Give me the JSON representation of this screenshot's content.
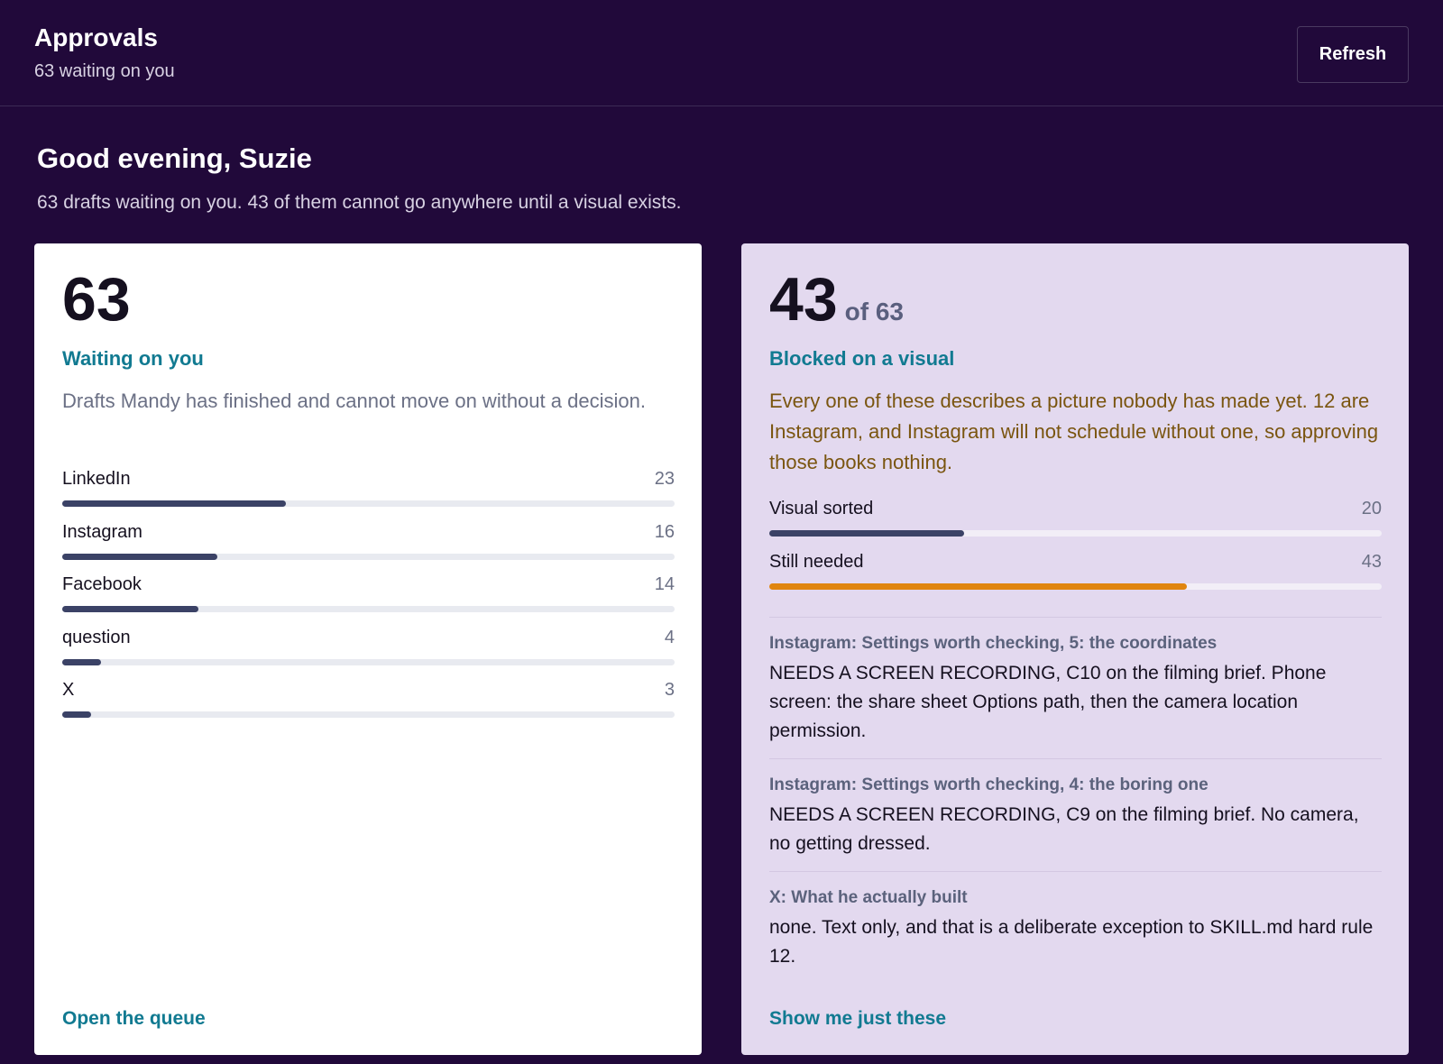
{
  "header": {
    "title": "Approvals",
    "subtitle": "63 waiting on you",
    "refresh_label": "Refresh"
  },
  "greeting": {
    "title": "Good evening, Suzie",
    "subtitle": "63 drafts waiting on you. 43 of them cannot go anywhere until a visual exists."
  },
  "waiting_card": {
    "count": "63",
    "label": "Waiting on you",
    "description": "Drafts Mandy has finished and cannot move on without a decision.",
    "bar_max": 63,
    "bar_color": "#3b4266",
    "platforms": [
      {
        "label": "LinkedIn",
        "value": 23
      },
      {
        "label": "Instagram",
        "value": 16
      },
      {
        "label": "Facebook",
        "value": 14
      },
      {
        "label": "question",
        "value": 4
      },
      {
        "label": "X",
        "value": 3
      }
    ],
    "link_label": "Open the queue"
  },
  "blocked_card": {
    "count": "43",
    "count_suffix": "of 63",
    "label": "Blocked on a visual",
    "description": "Every one of these describes a picture nobody has made yet. 12 are Instagram, and Instagram will not schedule without one, so approving those books nothing.",
    "bar_max": 63,
    "stats": [
      {
        "label": "Visual sorted",
        "value": 20,
        "color": "#3b4266"
      },
      {
        "label": "Still needed",
        "value": 43,
        "color": "#e0850f"
      }
    ],
    "items": [
      {
        "title": "Instagram: Settings worth checking, 5: the coordinates",
        "text": "NEEDS A SCREEN RECORDING, C10 on the filming brief. Phone screen: the share sheet Options path, then the camera location permission."
      },
      {
        "title": "Instagram: Settings worth checking, 4: the boring one",
        "text": "NEEDS A SCREEN RECORDING, C9 on the filming brief. No camera, no getting dressed."
      },
      {
        "title": "X: What he actually built",
        "text": "none. Text only, and that is a deliberate exception to SKILL.md hard rule 12."
      }
    ],
    "link_label": "Show me just these"
  }
}
